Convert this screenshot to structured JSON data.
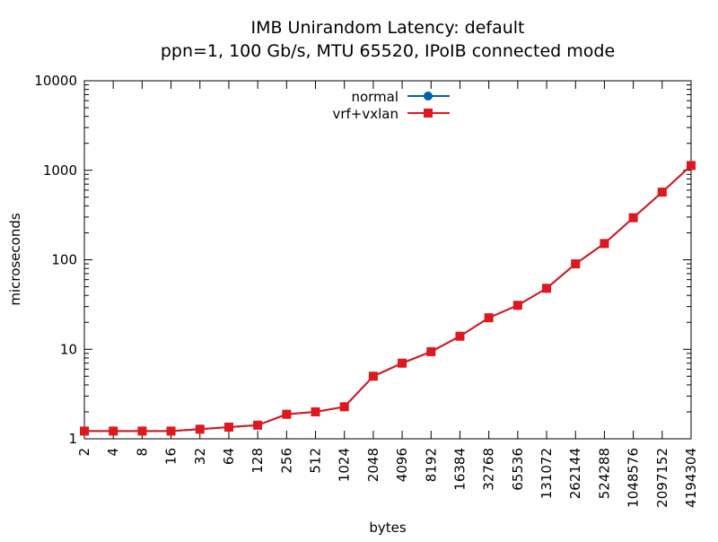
{
  "chart_data": {
    "type": "line",
    "title_line1": "IMB Unirandom Latency: default",
    "title_line2": "ppn=1, 100 Gb/s, MTU 65520, IPoIB connected mode",
    "xlabel": "bytes",
    "ylabel": "microseconds",
    "x_scale": "log2",
    "y_scale": "log10",
    "x_range": [
      2,
      4194304
    ],
    "ylim": [
      1,
      10000
    ],
    "y_ticks": [
      "1",
      "10",
      "100",
      "1000",
      "10000"
    ],
    "x_ticks": [
      2,
      4,
      8,
      16,
      32,
      64,
      128,
      256,
      512,
      1024,
      2048,
      4096,
      8192,
      16384,
      32768,
      65536,
      131072,
      262144,
      524288,
      1048576,
      2097152,
      4194304
    ],
    "x_tick_labels": [
      "2",
      "4",
      "8",
      "16",
      "32",
      "64",
      "128",
      "256",
      "512",
      "1024",
      "2048",
      "4096",
      "8192",
      "16384",
      "32768",
      "65536",
      "131072",
      "262144",
      "524288",
      "1048576",
      "2097152",
      "4194304"
    ],
    "legend_position": "top-center",
    "grid": false,
    "series": [
      {
        "name": "normal",
        "color": "#0060ad",
        "marker": "circle",
        "x": [
          2,
          4,
          8,
          16,
          32,
          64,
          128,
          256,
          512,
          1024,
          2048,
          4096,
          8192,
          16384,
          32768,
          65536,
          131072,
          262144,
          524288,
          1048576,
          2097152,
          4194304
        ],
        "values": [
          1.22,
          1.22,
          1.22,
          1.22,
          1.28,
          1.35,
          1.42,
          1.88,
          2.0,
          2.28,
          5.0,
          7.0,
          9.4,
          14.0,
          22.5,
          31.0,
          48.0,
          90.0,
          152.0,
          295.0,
          570.0,
          1130.0
        ]
      },
      {
        "name": "vrf+vxlan",
        "color": "#dd181f",
        "marker": "square",
        "x": [
          2,
          4,
          8,
          16,
          32,
          64,
          128,
          256,
          512,
          1024,
          2048,
          4096,
          8192,
          16384,
          32768,
          65536,
          131072,
          262144,
          524288,
          1048576,
          2097152,
          4194304
        ],
        "values": [
          1.22,
          1.22,
          1.22,
          1.22,
          1.28,
          1.35,
          1.42,
          1.88,
          2.0,
          2.28,
          5.0,
          7.0,
          9.4,
          14.0,
          22.5,
          31.0,
          48.0,
          90.0,
          152.0,
          295.0,
          570.0,
          1130.0
        ]
      }
    ]
  }
}
